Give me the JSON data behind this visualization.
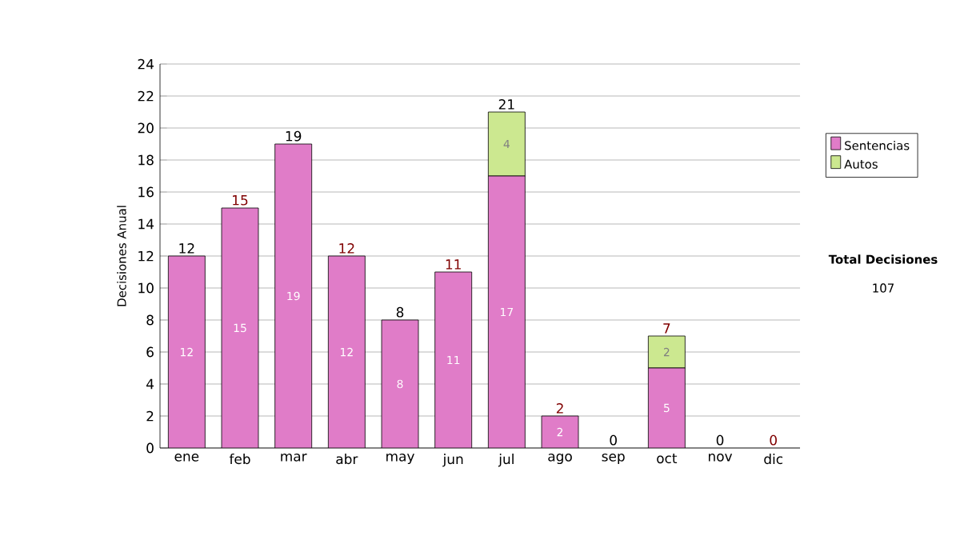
{
  "chart_data": {
    "type": "bar",
    "stacked": true,
    "ylabel": "Decisiones Anual",
    "categories": [
      "ene",
      "feb",
      "mar",
      "abr",
      "may",
      "jun",
      "jul",
      "ago",
      "sep",
      "oct",
      "nov",
      "dic"
    ],
    "series": [
      {
        "name": "Sentencias",
        "color": "#e07cc8",
        "values": [
          12,
          15,
          19,
          12,
          8,
          11,
          17,
          2,
          0,
          5,
          0,
          0
        ],
        "value_labels": [
          "12",
          "15",
          "19",
          "12",
          "8",
          "11",
          "17",
          "2",
          null,
          "5",
          null,
          null
        ]
      },
      {
        "name": "Autos",
        "color": "#cce890",
        "values": [
          0,
          0,
          0,
          0,
          0,
          0,
          4,
          0,
          0,
          2,
          0,
          0
        ],
        "value_labels": [
          null,
          null,
          null,
          null,
          null,
          null,
          "4",
          null,
          null,
          "2",
          null,
          null
        ]
      }
    ],
    "totals": [
      "12",
      "15",
      "19",
      "12",
      "8",
      "11",
      "21",
      "2",
      "0",
      "7",
      "0",
      "0"
    ],
    "ylim": [
      0,
      24
    ],
    "yticks": [
      0,
      2,
      4,
      6,
      8,
      10,
      12,
      14,
      16,
      18,
      20,
      22,
      24
    ],
    "grid": "y",
    "legend": "right",
    "annotations": [
      "Total Decisiones",
      "107"
    ]
  }
}
